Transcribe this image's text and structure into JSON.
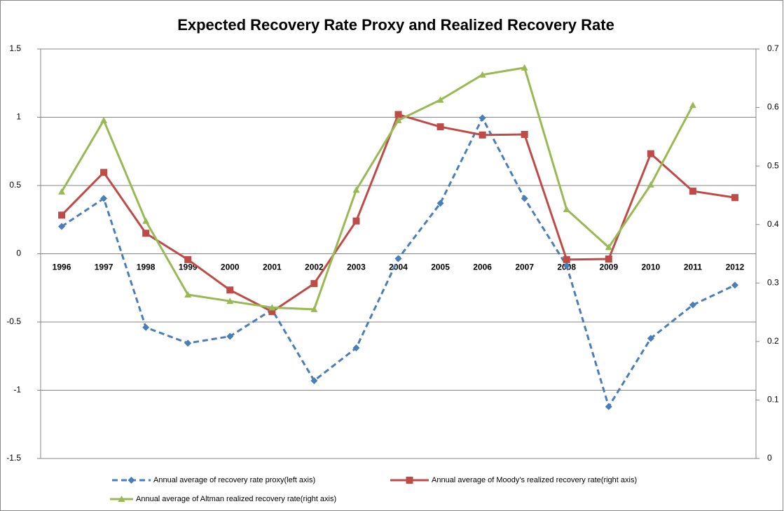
{
  "chart_data": {
    "type": "line",
    "title": "Expected  Recovery Rate Proxy and Realized Recovery Rate",
    "categories": [
      "1996",
      "1997",
      "1998",
      "1999",
      "2000",
      "2001",
      "2002",
      "2003",
      "2004",
      "2005",
      "2006",
      "2007",
      "2008",
      "2009",
      "2010",
      "2011",
      "2012"
    ],
    "series": [
      {
        "name": "Annual average of recovery rate proxy(left axis)",
        "color": "#4a7ebb",
        "marker": "diamond",
        "dashed": true,
        "axis": "y",
        "values": [
          0.2,
          0.405,
          -0.54,
          -0.655,
          -0.605,
          -0.41,
          -0.93,
          -0.69,
          -0.035,
          0.37,
          0.995,
          0.405,
          -0.087,
          -1.12,
          -0.62,
          -0.375,
          -0.23
        ]
      },
      {
        "name": "Annual average of Moody's realized recovery rate(right axis)",
        "color": "#be4b48",
        "marker": "square",
        "dashed": false,
        "axis": "y2",
        "values": [
          0.416,
          0.489,
          0.385,
          0.34,
          0.288,
          0.251,
          0.299,
          0.406,
          0.588,
          0.567,
          0.553,
          0.554,
          0.34,
          0.341,
          0.521,
          0.457,
          0.446
        ]
      },
      {
        "name": "Annual average of Altman realized recovery rate(right axis)",
        "color": "#98b954",
        "marker": "triangle",
        "dashed": false,
        "axis": "y2",
        "values": [
          0.456,
          0.578,
          0.406,
          0.28,
          0.269,
          0.258,
          0.255,
          0.459,
          0.578,
          0.613,
          0.656,
          0.668,
          0.426,
          0.361,
          0.468,
          0.604,
          null
        ]
      }
    ],
    "ylim": [
      -1.5,
      1.5
    ],
    "yticks": [
      1.5,
      1,
      0.5,
      0,
      -0.5,
      -1,
      -1.5
    ],
    "y2lim": [
      0,
      0.7
    ],
    "y2ticks": [
      0.7,
      0.6,
      0.5,
      0.4,
      0.3,
      0.2,
      0.1,
      0
    ],
    "grid": true,
    "legend": "bottom"
  }
}
